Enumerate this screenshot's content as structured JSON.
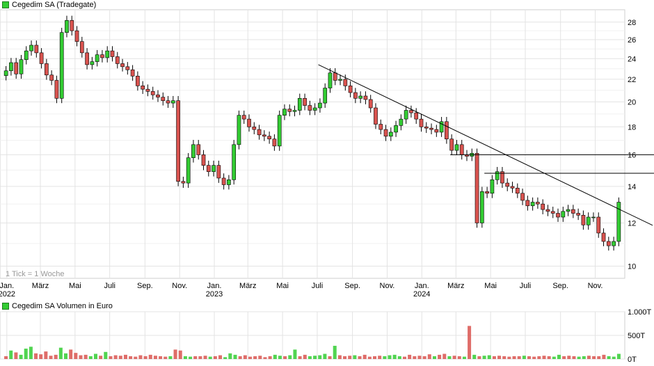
{
  "chart_data": [
    {
      "type": "candlestick",
      "title": "Cegedim SA (Tradegate)",
      "legend_color": "#33cc33",
      "up_color": "#33cc33",
      "down_color": "#d9534f",
      "grid": true,
      "y_axis_side": "right",
      "ylim": [
        9.5,
        29.5
      ],
      "y_scale": "log",
      "y_ticks": [
        10,
        12,
        14,
        16,
        18,
        20,
        22,
        24,
        26,
        28
      ],
      "x_range": [
        "2021-12-20",
        "2024-12-23"
      ],
      "x_ticks": [
        {
          "date": "2022-01-01",
          "label": "Jan.",
          "year": "2022"
        },
        {
          "date": "2022-03-01",
          "label": "März"
        },
        {
          "date": "2022-05-01",
          "label": "Mai"
        },
        {
          "date": "2022-07-01",
          "label": "Juli"
        },
        {
          "date": "2022-09-01",
          "label": "Sep."
        },
        {
          "date": "2022-11-01",
          "label": "Nov."
        },
        {
          "date": "2023-01-01",
          "label": "Jan.",
          "year": "2023"
        },
        {
          "date": "2023-03-01",
          "label": "März"
        },
        {
          "date": "2023-05-01",
          "label": "Mai"
        },
        {
          "date": "2023-07-01",
          "label": "Juli"
        },
        {
          "date": "2023-09-01",
          "label": "Sep."
        },
        {
          "date": "2023-11-01",
          "label": "Nov."
        },
        {
          "date": "2024-01-01",
          "label": "Jan.",
          "year": "2024"
        },
        {
          "date": "2024-03-01",
          "label": "März"
        },
        {
          "date": "2024-05-01",
          "label": "Mai"
        },
        {
          "date": "2024-07-01",
          "label": "Juli"
        },
        {
          "date": "2024-09-01",
          "label": "Sep."
        },
        {
          "date": "2024-11-01",
          "label": "Nov."
        }
      ],
      "annotation": "1 Tick = 1 Woche",
      "close_series": [
        22.8,
        23.6,
        22.5,
        23.9,
        24.8,
        25.4,
        24.6,
        23.5,
        22.4,
        21.9,
        20.3,
        26.8,
        28.2,
        27.0,
        25.8,
        24.6,
        23.4,
        23.7,
        24.4,
        24.1,
        24.8,
        24.2,
        23.5,
        23.2,
        22.9,
        22.3,
        21.4,
        21.1,
        20.9,
        20.6,
        20.4,
        20.1,
        19.9,
        20.1,
        14.3,
        14.2,
        15.8,
        16.7,
        16.0,
        15.3,
        14.9,
        15.3,
        14.5,
        14.1,
        14.4,
        16.7,
        18.9,
        18.6,
        18.0,
        17.8,
        17.4,
        17.3,
        17.1,
        16.6,
        18.9,
        19.4,
        19.2,
        19.3,
        20.3,
        19.7,
        19.3,
        19.5,
        19.9,
        21.2,
        22.6,
        21.9,
        22.0,
        21.4,
        20.8,
        20.3,
        20.5,
        20.2,
        19.5,
        18.2,
        17.8,
        17.3,
        17.6,
        18.1,
        18.6,
        19.3,
        19.1,
        18.6,
        18.0,
        17.9,
        17.8,
        17.6,
        18.4,
        17.1,
        16.3,
        16.7,
        16.0,
        15.9,
        16.1,
        12.0,
        13.7,
        13.6,
        14.4,
        14.9,
        14.2,
        14.0,
        13.9,
        13.6,
        13.2,
        12.9,
        13.1,
        13.0,
        12.7,
        12.6,
        12.5,
        12.3,
        12.6,
        12.7,
        12.5,
        12.4,
        11.9,
        12.3,
        12.3,
        11.5,
        11.1,
        10.9,
        11.1,
        13.1
      ],
      "markers": {
        "decline_start": "2023-07-03",
        "lows": "2024-12-09"
      }
    },
    {
      "type": "bar",
      "title": "Cegedim SA Volumen in Euro",
      "legend_color": "#33cc33",
      "y_ticks": [
        {
          "value": 0,
          "label": "0T"
        },
        {
          "value": 500,
          "label": "500T"
        },
        {
          "value": 1000,
          "label": "1.000T"
        }
      ],
      "ylim": [
        0,
        1000
      ],
      "values": [
        60,
        180,
        140,
        90,
        220,
        260,
        120,
        100,
        160,
        70,
        90,
        240,
        120,
        200,
        130,
        80,
        90,
        60,
        110,
        70,
        150,
        60,
        80,
        70,
        90,
        60,
        50,
        80,
        60,
        90,
        70,
        60,
        50,
        60,
        200,
        180,
        60,
        50,
        60,
        60,
        70,
        50,
        60,
        80,
        40,
        120,
        90,
        60,
        80,
        50,
        60,
        70,
        40,
        60,
        90,
        70,
        60,
        80,
        200,
        60,
        90,
        60,
        70,
        80,
        110,
        60,
        280,
        80,
        60,
        70,
        80,
        60,
        90,
        50,
        60,
        70,
        60,
        80,
        90,
        60,
        50,
        90,
        60,
        70,
        60,
        100,
        60,
        90,
        110,
        60,
        70,
        60,
        50,
        700,
        90,
        60,
        70,
        80,
        60,
        70,
        60,
        50,
        60,
        60,
        70,
        60,
        50,
        60,
        70,
        60,
        50,
        90,
        60,
        70,
        60,
        50,
        60,
        70,
        60,
        60,
        90,
        60,
        50,
        110
      ],
      "up_days": [
        false,
        true,
        false,
        true,
        true,
        true,
        false,
        false,
        false,
        false,
        false,
        true,
        true,
        false,
        false,
        false,
        false,
        true,
        true,
        false,
        true,
        false,
        false,
        false,
        false,
        false,
        false,
        false,
        false,
        false,
        false,
        false,
        false,
        true,
        false,
        false,
        true,
        true,
        false,
        false,
        false,
        true,
        false,
        false,
        true,
        true,
        true,
        false,
        false,
        false,
        false,
        false,
        false,
        false,
        true,
        true,
        false,
        true,
        true,
        false,
        false,
        true,
        true,
        true,
        true,
        false,
        true,
        false,
        false,
        false,
        true,
        false,
        false,
        false,
        false,
        false,
        true,
        true,
        true,
        true,
        false,
        false,
        false,
        false,
        false,
        false,
        true,
        false,
        false,
        true,
        false,
        false,
        true,
        false,
        true,
        false,
        true,
        true,
        false,
        false,
        false,
        false,
        false,
        false,
        true,
        false,
        false,
        false,
        false,
        false,
        true,
        true,
        false,
        false,
        false,
        true,
        true,
        false,
        false,
        false,
        false,
        true,
        true,
        true
      ]
    }
  ],
  "fixed_values": {
    "resistance_1": 16.0,
    "resistance_2": 14.8,
    "trend_start": {
      "date": "2023-07-03",
      "value": 23.4
    },
    "trend_end": {
      "date": "2024-12-23",
      "value": 12.6
    }
  }
}
